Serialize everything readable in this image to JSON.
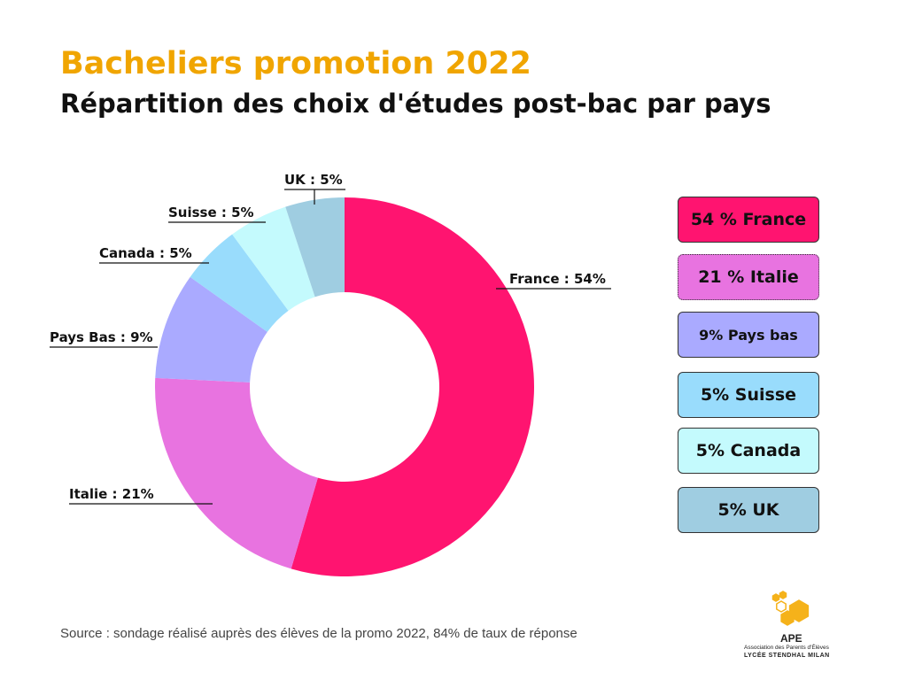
{
  "header": {
    "title": "Bacheliers promotion 2022",
    "subtitle": "Répartition des choix d'études post-bac par pays"
  },
  "chart_data": {
    "type": "pie",
    "variant": "donut",
    "title": "Bacheliers promotion 2022",
    "subtitle": "Répartition des choix d'études post-bac par pays",
    "categories": [
      "France",
      "Italie",
      "Pays Bas",
      "Canada",
      "Suisse",
      "UK"
    ],
    "values": [
      54,
      21,
      9,
      5,
      5,
      5
    ],
    "unit": "%",
    "colors": [
      "#ff1470",
      "#e873e0",
      "#aaaaff",
      "#99dcfc",
      "#c4fafd",
      "#9fcde1"
    ],
    "data_labels": [
      "France : 54%",
      "Italie : 21%",
      "Pays Bas : 9%",
      "Canada : 5%",
      "Suisse : 5%",
      "UK : 5%"
    ]
  },
  "legend": [
    {
      "text": "54 % France",
      "color": "#ff1470"
    },
    {
      "text": "21 % Italie",
      "color": "#e873e0"
    },
    {
      "text": "9% Pays bas",
      "color": "#aaaaff"
    },
    {
      "text": "5% Suisse",
      "color": "#99dcfc"
    },
    {
      "text": "5% Canada",
      "color": "#c4fafd"
    },
    {
      "text": "5% UK",
      "color": "#9fcde1"
    }
  ],
  "footer": {
    "source": "Source : sondage réalisé auprès des élèves de la promo 2022, 84% de taux de réponse"
  },
  "logo": {
    "name": "APE",
    "association": "Association des Parents d'Élèves",
    "school": "LYCÉE STENDHAL MILAN",
    "color": "#f5b21a"
  }
}
